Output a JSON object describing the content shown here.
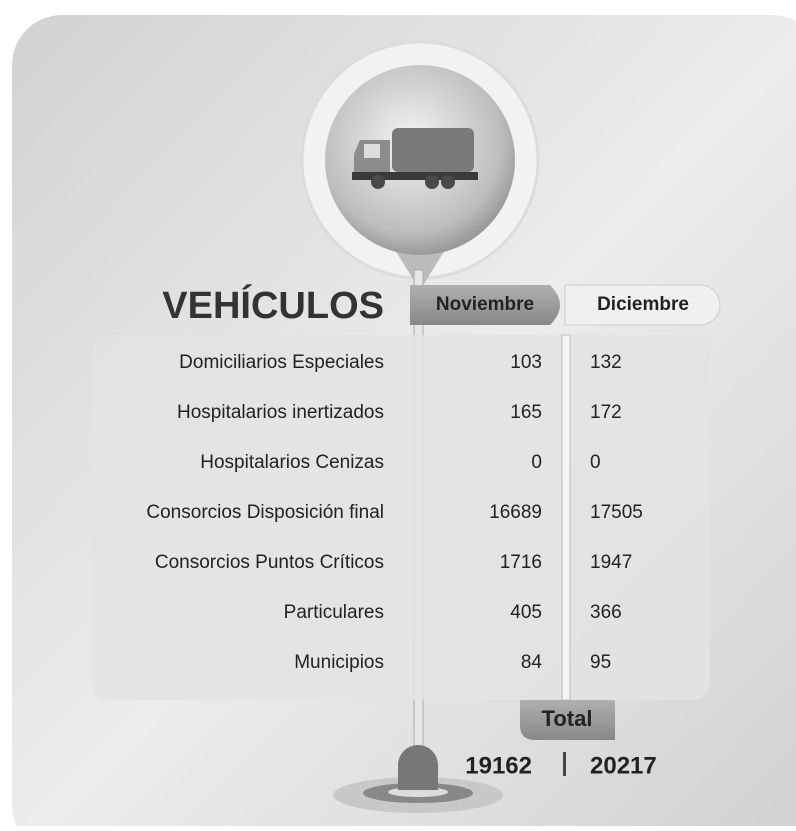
{
  "title": "VEHÍCULOS",
  "table": {
    "columns": [
      "Noviembre",
      "Diciembre"
    ],
    "rows": [
      [
        "Domiciliarios Especiales",
        103,
        132
      ],
      [
        "Hospitalarios inertizados",
        165,
        172
      ],
      [
        "Hospitalarios Cenizas",
        0,
        0
      ],
      [
        "Consorcios Disposición final",
        16689,
        17505
      ],
      [
        "Consorcios Puntos Críticos",
        1716,
        1947
      ],
      [
        "Particulares",
        405,
        366
      ],
      [
        "Municipios",
        84,
        95
      ]
    ]
  },
  "total": {
    "label": "Total",
    "values": [
      19162,
      20217
    ]
  }
}
